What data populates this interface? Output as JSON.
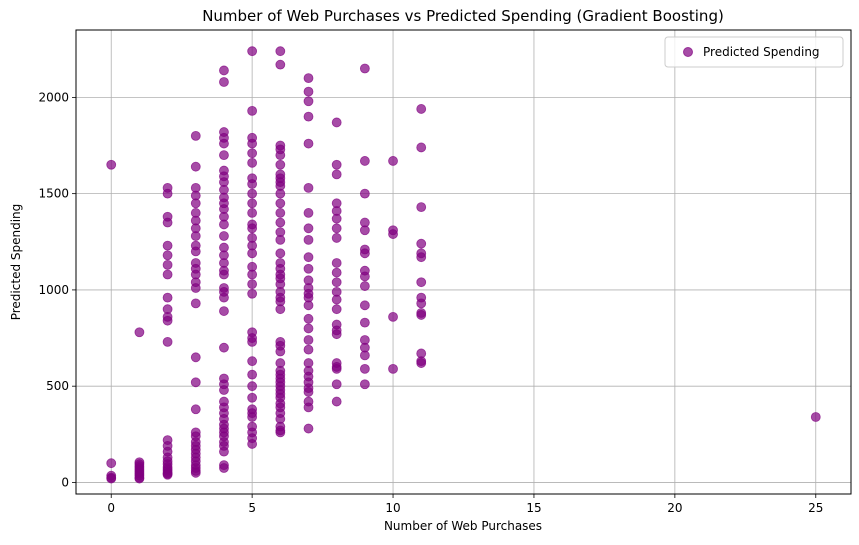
{
  "chart_data": {
    "type": "scatter",
    "title": "Number of Web Purchases vs Predicted Spending (Gradient Boosting)",
    "xlabel": "Number of Web Purchases",
    "ylabel": "Predicted Spending",
    "xlim": [
      -1.25,
      26.25
    ],
    "ylim": [
      -60,
      2350
    ],
    "xticks": [
      0,
      5,
      10,
      15,
      20,
      25
    ],
    "yticks": [
      0,
      500,
      1000,
      1500,
      2000
    ],
    "grid": true,
    "legend_position": "top-right",
    "series": [
      {
        "name": "Predicted Spending",
        "color": "#800080",
        "opacity": 0.7,
        "points": [
          [
            0,
            1650
          ],
          [
            0,
            100
          ],
          [
            0,
            35
          ],
          [
            0,
            25
          ],
          [
            0,
            20
          ],
          [
            1,
            780
          ],
          [
            1,
            105
          ],
          [
            1,
            95
          ],
          [
            1,
            85
          ],
          [
            1,
            75
          ],
          [
            1,
            65
          ],
          [
            1,
            55
          ],
          [
            1,
            45
          ],
          [
            1,
            35
          ],
          [
            1,
            25
          ],
          [
            1,
            20
          ],
          [
            2,
            1530
          ],
          [
            2,
            1500
          ],
          [
            2,
            1380
          ],
          [
            2,
            1350
          ],
          [
            2,
            1230
          ],
          [
            2,
            1180
          ],
          [
            2,
            1130
          ],
          [
            2,
            1080
          ],
          [
            2,
            960
          ],
          [
            2,
            900
          ],
          [
            2,
            860
          ],
          [
            2,
            840
          ],
          [
            2,
            730
          ],
          [
            2,
            220
          ],
          [
            2,
            190
          ],
          [
            2,
            160
          ],
          [
            2,
            130
          ],
          [
            2,
            110
          ],
          [
            2,
            95
          ],
          [
            2,
            80
          ],
          [
            2,
            70
          ],
          [
            2,
            60
          ],
          [
            2,
            50
          ],
          [
            2,
            45
          ],
          [
            2,
            40
          ],
          [
            3,
            1800
          ],
          [
            3,
            1640
          ],
          [
            3,
            1530
          ],
          [
            3,
            1490
          ],
          [
            3,
            1450
          ],
          [
            3,
            1400
          ],
          [
            3,
            1360
          ],
          [
            3,
            1320
          ],
          [
            3,
            1280
          ],
          [
            3,
            1230
          ],
          [
            3,
            1200
          ],
          [
            3,
            1140
          ],
          [
            3,
            1110
          ],
          [
            3,
            1080
          ],
          [
            3,
            1040
          ],
          [
            3,
            1010
          ],
          [
            3,
            930
          ],
          [
            3,
            650
          ],
          [
            3,
            520
          ],
          [
            3,
            380
          ],
          [
            3,
            260
          ],
          [
            3,
            240
          ],
          [
            3,
            210
          ],
          [
            3,
            190
          ],
          [
            3,
            170
          ],
          [
            3,
            150
          ],
          [
            3,
            130
          ],
          [
            3,
            110
          ],
          [
            3,
            90
          ],
          [
            3,
            75
          ],
          [
            3,
            60
          ],
          [
            3,
            50
          ],
          [
            4,
            2140
          ],
          [
            4,
            2080
          ],
          [
            4,
            1820
          ],
          [
            4,
            1790
          ],
          [
            4,
            1760
          ],
          [
            4,
            1700
          ],
          [
            4,
            1620
          ],
          [
            4,
            1590
          ],
          [
            4,
            1560
          ],
          [
            4,
            1520
          ],
          [
            4,
            1480
          ],
          [
            4,
            1450
          ],
          [
            4,
            1420
          ],
          [
            4,
            1380
          ],
          [
            4,
            1340
          ],
          [
            4,
            1280
          ],
          [
            4,
            1220
          ],
          [
            4,
            1180
          ],
          [
            4,
            1140
          ],
          [
            4,
            1100
          ],
          [
            4,
            1080
          ],
          [
            4,
            1010
          ],
          [
            4,
            990
          ],
          [
            4,
            960
          ],
          [
            4,
            890
          ],
          [
            4,
            700
          ],
          [
            4,
            540
          ],
          [
            4,
            510
          ],
          [
            4,
            480
          ],
          [
            4,
            420
          ],
          [
            4,
            390
          ],
          [
            4,
            360
          ],
          [
            4,
            330
          ],
          [
            4,
            300
          ],
          [
            4,
            280
          ],
          [
            4,
            260
          ],
          [
            4,
            240
          ],
          [
            4,
            210
          ],
          [
            4,
            190
          ],
          [
            4,
            160
          ],
          [
            4,
            90
          ],
          [
            4,
            75
          ],
          [
            5,
            2240
          ],
          [
            5,
            1930
          ],
          [
            5,
            1790
          ],
          [
            5,
            1760
          ],
          [
            5,
            1710
          ],
          [
            5,
            1660
          ],
          [
            5,
            1580
          ],
          [
            5,
            1550
          ],
          [
            5,
            1500
          ],
          [
            5,
            1450
          ],
          [
            5,
            1400
          ],
          [
            5,
            1340
          ],
          [
            5,
            1320
          ],
          [
            5,
            1270
          ],
          [
            5,
            1230
          ],
          [
            5,
            1190
          ],
          [
            5,
            1120
          ],
          [
            5,
            1080
          ],
          [
            5,
            1030
          ],
          [
            5,
            980
          ],
          [
            5,
            780
          ],
          [
            5,
            750
          ],
          [
            5,
            730
          ],
          [
            5,
            630
          ],
          [
            5,
            560
          ],
          [
            5,
            500
          ],
          [
            5,
            440
          ],
          [
            5,
            380
          ],
          [
            5,
            360
          ],
          [
            5,
            340
          ],
          [
            5,
            290
          ],
          [
            5,
            260
          ],
          [
            5,
            230
          ],
          [
            5,
            200
          ],
          [
            6,
            2240
          ],
          [
            6,
            2170
          ],
          [
            6,
            1750
          ],
          [
            6,
            1730
          ],
          [
            6,
            1700
          ],
          [
            6,
            1650
          ],
          [
            6,
            1600
          ],
          [
            6,
            1580
          ],
          [
            6,
            1560
          ],
          [
            6,
            1540
          ],
          [
            6,
            1500
          ],
          [
            6,
            1450
          ],
          [
            6,
            1400
          ],
          [
            6,
            1350
          ],
          [
            6,
            1300
          ],
          [
            6,
            1260
          ],
          [
            6,
            1190
          ],
          [
            6,
            1140
          ],
          [
            6,
            1110
          ],
          [
            6,
            1080
          ],
          [
            6,
            1060
          ],
          [
            6,
            1030
          ],
          [
            6,
            990
          ],
          [
            6,
            960
          ],
          [
            6,
            940
          ],
          [
            6,
            900
          ],
          [
            6,
            730
          ],
          [
            6,
            710
          ],
          [
            6,
            680
          ],
          [
            6,
            620
          ],
          [
            6,
            580
          ],
          [
            6,
            560
          ],
          [
            6,
            540
          ],
          [
            6,
            520
          ],
          [
            6,
            500
          ],
          [
            6,
            480
          ],
          [
            6,
            460
          ],
          [
            6,
            440
          ],
          [
            6,
            410
          ],
          [
            6,
            390
          ],
          [
            6,
            360
          ],
          [
            6,
            330
          ],
          [
            6,
            290
          ],
          [
            6,
            270
          ],
          [
            6,
            260
          ],
          [
            7,
            2100
          ],
          [
            7,
            2030
          ],
          [
            7,
            1980
          ],
          [
            7,
            1900
          ],
          [
            7,
            1760
          ],
          [
            7,
            1530
          ],
          [
            7,
            1400
          ],
          [
            7,
            1320
          ],
          [
            7,
            1260
          ],
          [
            7,
            1170
          ],
          [
            7,
            1110
          ],
          [
            7,
            1050
          ],
          [
            7,
            1010
          ],
          [
            7,
            980
          ],
          [
            7,
            960
          ],
          [
            7,
            920
          ],
          [
            7,
            850
          ],
          [
            7,
            800
          ],
          [
            7,
            740
          ],
          [
            7,
            690
          ],
          [
            7,
            620
          ],
          [
            7,
            580
          ],
          [
            7,
            550
          ],
          [
            7,
            520
          ],
          [
            7,
            490
          ],
          [
            7,
            470
          ],
          [
            7,
            420
          ],
          [
            7,
            390
          ],
          [
            7,
            280
          ],
          [
            8,
            1870
          ],
          [
            8,
            1650
          ],
          [
            8,
            1600
          ],
          [
            8,
            1450
          ],
          [
            8,
            1410
          ],
          [
            8,
            1370
          ],
          [
            8,
            1320
          ],
          [
            8,
            1270
          ],
          [
            8,
            1140
          ],
          [
            8,
            1090
          ],
          [
            8,
            1040
          ],
          [
            8,
            990
          ],
          [
            8,
            950
          ],
          [
            8,
            900
          ],
          [
            8,
            820
          ],
          [
            8,
            790
          ],
          [
            8,
            770
          ],
          [
            8,
            620
          ],
          [
            8,
            600
          ],
          [
            8,
            590
          ],
          [
            8,
            510
          ],
          [
            8,
            420
          ],
          [
            9,
            2150
          ],
          [
            9,
            1670
          ],
          [
            9,
            1500
          ],
          [
            9,
            1350
          ],
          [
            9,
            1310
          ],
          [
            9,
            1210
          ],
          [
            9,
            1190
          ],
          [
            9,
            1100
          ],
          [
            9,
            1070
          ],
          [
            9,
            1020
          ],
          [
            9,
            920
          ],
          [
            9,
            830
          ],
          [
            9,
            740
          ],
          [
            9,
            700
          ],
          [
            9,
            660
          ],
          [
            9,
            590
          ],
          [
            9,
            510
          ],
          [
            10,
            1670
          ],
          [
            10,
            1310
          ],
          [
            10,
            1290
          ],
          [
            10,
            860
          ],
          [
            10,
            590
          ],
          [
            11,
            1940
          ],
          [
            11,
            1740
          ],
          [
            11,
            1430
          ],
          [
            11,
            1240
          ],
          [
            11,
            1190
          ],
          [
            11,
            1170
          ],
          [
            11,
            1040
          ],
          [
            11,
            960
          ],
          [
            11,
            930
          ],
          [
            11,
            880
          ],
          [
            11,
            870
          ],
          [
            11,
            670
          ],
          [
            11,
            630
          ],
          [
            11,
            620
          ],
          [
            25,
            340
          ]
        ]
      }
    ]
  }
}
